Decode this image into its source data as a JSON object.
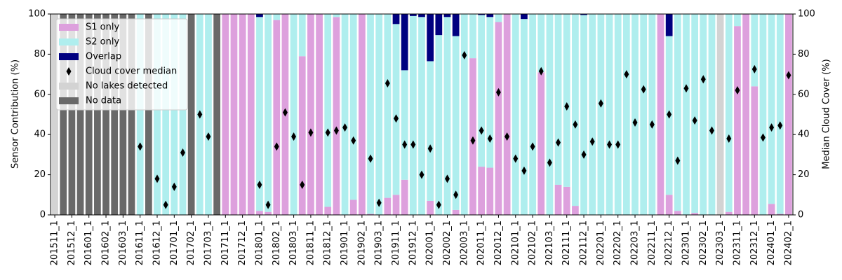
{
  "chart_data": {
    "type": "bar",
    "stacked": true,
    "ylabel": "Sensor Contribution (%)",
    "y2label": "Median Cloud Cover (%)",
    "ylim": [
      0,
      100
    ],
    "yticks": [
      0,
      20,
      40,
      60,
      80,
      100
    ],
    "y2lim": [
      0,
      100
    ],
    "y2ticks": [
      0,
      20,
      40,
      60,
      80,
      100
    ],
    "legend": "upper left",
    "categories": [
      "201511_1",
      null,
      "201512_1",
      null,
      "201601_1",
      null,
      "201602_1",
      null,
      "201603_1",
      null,
      "201611_1",
      null,
      "201612_1",
      null,
      "201701_1",
      null,
      "201702_1",
      null,
      "201703_1",
      null,
      "201711_1",
      null,
      "201712_1",
      null,
      "201801_1",
      null,
      "201802_1",
      null,
      "201803_1",
      null,
      "201811_1",
      null,
      "201812_1",
      null,
      "201901_1",
      null,
      "201902_1",
      null,
      "201903_1",
      null,
      "201911_1",
      null,
      "201912_1",
      null,
      "202001_1",
      null,
      "202002_1",
      null,
      "202003_1",
      null,
      "202011_1",
      null,
      "202012_1",
      null,
      "202101_1",
      null,
      "202102_1",
      null,
      "202103_1",
      null,
      "202111_1",
      null,
      "202112_1",
      null,
      "202201_1",
      null,
      "202202_1",
      null,
      "202203_1",
      null,
      "202211_1",
      null,
      "202212_1",
      null,
      "202301_1",
      null,
      "202302_1",
      null,
      "202303_1",
      null,
      "202311_1",
      null,
      "202312_1",
      null,
      "202401_1",
      null,
      "202402_1"
    ],
    "series": [
      {
        "name": "S1 only",
        "color": "#dda0dd",
        "values": [
          0,
          0,
          0,
          0,
          0,
          0,
          0,
          0,
          0,
          0,
          0,
          0,
          0,
          0,
          0,
          0,
          0,
          0,
          0,
          0,
          100,
          100,
          100,
          100,
          2,
          1.5,
          97,
          100,
          0,
          79,
          100,
          100,
          4,
          98.5,
          0,
          7.5,
          100,
          0.5,
          0,
          8.5,
          10,
          17.5,
          0,
          0,
          7,
          0,
          0,
          2.5,
          0,
          78,
          24,
          23.5,
          96,
          100,
          0,
          0,
          0,
          71,
          0,
          15,
          14,
          4.5,
          0,
          0,
          0,
          0,
          0,
          0,
          0,
          0,
          0,
          100,
          10,
          2,
          0,
          1,
          0,
          0,
          0,
          1.5,
          94,
          100,
          64,
          0,
          5.5,
          0.5,
          100
        ]
      },
      {
        "name": "S2 only",
        "color": "#afeeee",
        "values": [
          0,
          0,
          0,
          0,
          0,
          0,
          0,
          0,
          0,
          0,
          100,
          0,
          100,
          100,
          100,
          100,
          0,
          100,
          100,
          0,
          0,
          0,
          0,
          0,
          96.5,
          98.5,
          3,
          0,
          100,
          21,
          0,
          0,
          96,
          1.5,
          100,
          92.5,
          0,
          99.5,
          100,
          91.5,
          85,
          54.5,
          99,
          98.5,
          69.5,
          89.5,
          98.5,
          86.5,
          100,
          22,
          75.5,
          75,
          4,
          0,
          100,
          97.5,
          100,
          29,
          100,
          85,
          86,
          95.5,
          99.5,
          100,
          100,
          100,
          100,
          100,
          100,
          100,
          100,
          0,
          79,
          98,
          100,
          99,
          100,
          100,
          0,
          98.5,
          6,
          0,
          36,
          100,
          94.5,
          99.5,
          0
        ]
      },
      {
        "name": "Overlap",
        "color": "#000080",
        "values": [
          0,
          0,
          0,
          0,
          0,
          0,
          0,
          0,
          0,
          0,
          0,
          0,
          0,
          0,
          0,
          0,
          0,
          0,
          0,
          0,
          0,
          0,
          0,
          0,
          1.5,
          0,
          0,
          0,
          0,
          0,
          0,
          0,
          0,
          0,
          0,
          0,
          0,
          0,
          0,
          0,
          5,
          28,
          1,
          1.5,
          23.5,
          10.5,
          1.5,
          11,
          0,
          0,
          0.5,
          1.5,
          0,
          0,
          0,
          2.5,
          0,
          0,
          0,
          0,
          0,
          0,
          0.5,
          0,
          0,
          0,
          0,
          0,
          0,
          0,
          0,
          0,
          11,
          0,
          0,
          0,
          0,
          0,
          0,
          0,
          0,
          0,
          0,
          0,
          0,
          0,
          0
        ]
      },
      {
        "name": "Cloud cover median",
        "color": "#000000",
        "type": "scatter",
        "marker": "diamond",
        "axis": "y2",
        "values": [
          null,
          null,
          null,
          null,
          null,
          null,
          null,
          null,
          null,
          null,
          34,
          null,
          18,
          5,
          14,
          31,
          null,
          50,
          39,
          null,
          null,
          null,
          null,
          null,
          15,
          5,
          34,
          51,
          39,
          15,
          41,
          null,
          41,
          42,
          43.5,
          37,
          null,
          28,
          6,
          65.5,
          48,
          35,
          35,
          20,
          33,
          5,
          18,
          10,
          79.5,
          37,
          42,
          38,
          61,
          39,
          28,
          22,
          34,
          71.5,
          26,
          36,
          54,
          45,
          30,
          36.5,
          55.5,
          35,
          35,
          70,
          46,
          62.5,
          45,
          null,
          50,
          27,
          63,
          47,
          67.5,
          42,
          null,
          38,
          62,
          null,
          72.5,
          38.5,
          43.5,
          44.5,
          69.5
        ]
      },
      {
        "name": "No lakes detected",
        "color": "#d3d3d3",
        "values": [
          100,
          0,
          0,
          0,
          0,
          0,
          0,
          0,
          0,
          0,
          0,
          0,
          0,
          0,
          0,
          0,
          0,
          0,
          0,
          0,
          0,
          0,
          0,
          0,
          0,
          0,
          0,
          0,
          0,
          0,
          0,
          0,
          0,
          0,
          0,
          0,
          0,
          0,
          0,
          0,
          0,
          0,
          0,
          0,
          0,
          0,
          0,
          0,
          0,
          0,
          0,
          0,
          0,
          0,
          0,
          0,
          0,
          0,
          0,
          0,
          0,
          0,
          0,
          0,
          0,
          0,
          0,
          0,
          0,
          0,
          0,
          0,
          0,
          0,
          0,
          0,
          0,
          0,
          100,
          0,
          0,
          0,
          0,
          0,
          0,
          0,
          0
        ]
      },
      {
        "name": "No data",
        "color": "#696969",
        "values": [
          0,
          100,
          100,
          100,
          100,
          100,
          100,
          100,
          100,
          100,
          0,
          100,
          0,
          0,
          0,
          0,
          100,
          0,
          0,
          100,
          0,
          0,
          0,
          0,
          0,
          0,
          0,
          0,
          0,
          0,
          0,
          0,
          0,
          0,
          0,
          0,
          0,
          0,
          0,
          0,
          0,
          0,
          0,
          0,
          0,
          0,
          0,
          0,
          0,
          0,
          0,
          0,
          0,
          0,
          0,
          0,
          0,
          0,
          0,
          0,
          0,
          0,
          0,
          0,
          0,
          0,
          0,
          0,
          0,
          0,
          0,
          0,
          0,
          0,
          0,
          0,
          0,
          0,
          0,
          0,
          0,
          0,
          0,
          0,
          0,
          0,
          0
        ]
      }
    ]
  }
}
